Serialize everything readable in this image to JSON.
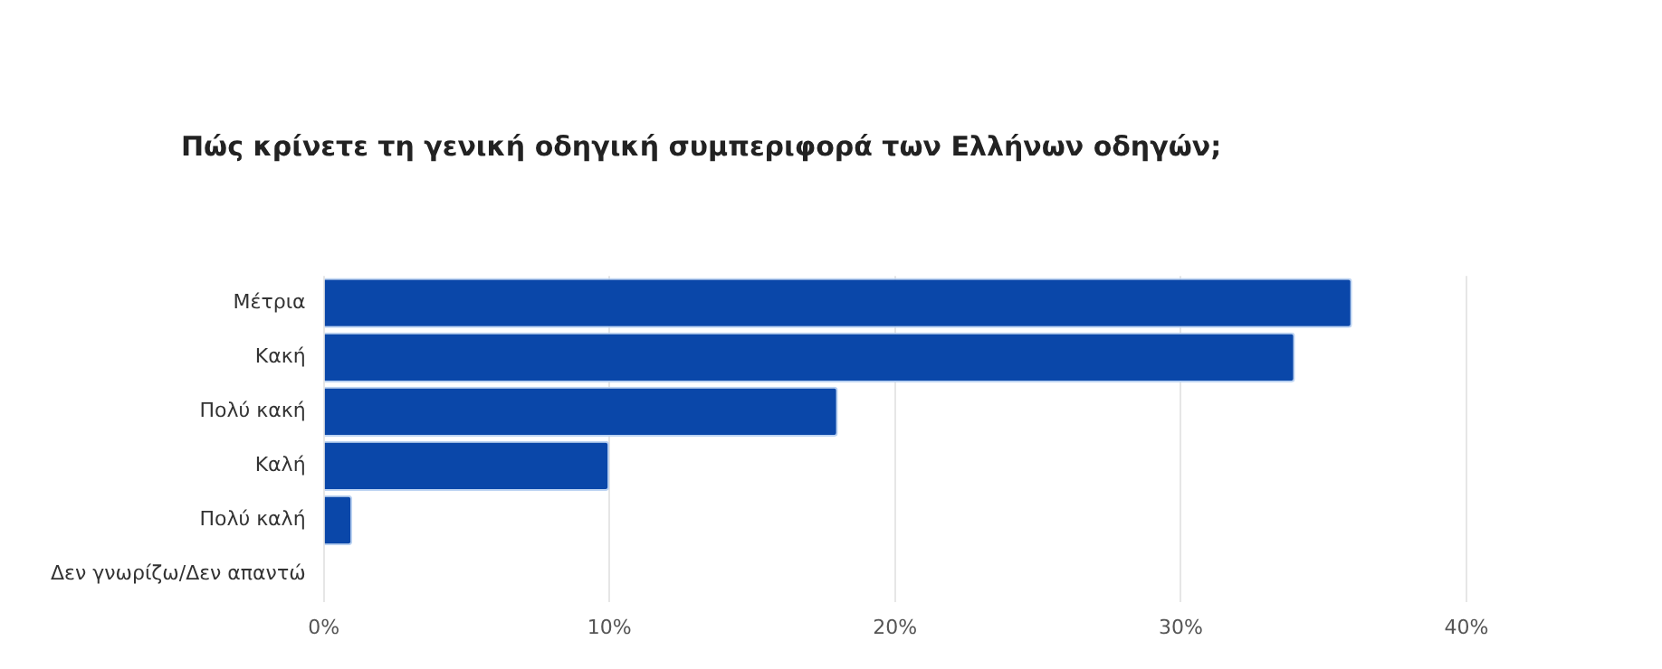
{
  "chart_data": {
    "type": "bar",
    "orientation": "horizontal",
    "title": "Πώς κρίνετε τη γενική οδηγική συμπεριφορά των Ελλήνων οδηγών;",
    "categories": [
      "Μέτρια",
      "Κακή",
      "Πολύ κακή",
      "Καλή",
      "Πολύ καλή",
      "Δεν γνωρίζω/Δεν απαντώ"
    ],
    "values": [
      36,
      34,
      18,
      10,
      1,
      0
    ],
    "color": "#0a47a9",
    "xlim": [
      0,
      40
    ],
    "xticks": [
      {
        "value": 0,
        "label": "0%"
      },
      {
        "value": 10,
        "label": "10%"
      },
      {
        "value": 20,
        "label": "20%"
      },
      {
        "value": 30,
        "label": "30%"
      },
      {
        "value": 40,
        "label": "40%"
      }
    ],
    "grid": "x"
  }
}
